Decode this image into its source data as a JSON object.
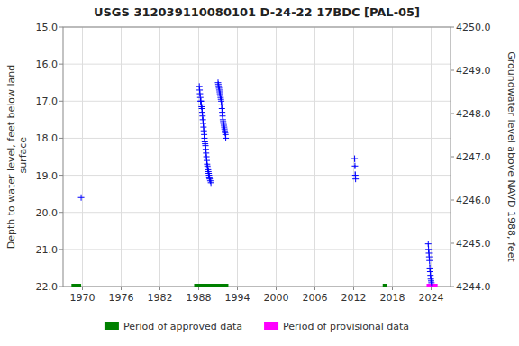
{
  "chart_data": {
    "type": "line",
    "title": "USGS 312039110080101 D-24-22 17BDC [PAL-05]",
    "y_label": "Depth to water level, feet below land\n surface",
    "y2_label": "Groundwater level above NAVD 1988, feet",
    "xlim": [
      1967,
      2027
    ],
    "xticks": [
      1970,
      1976,
      1982,
      1988,
      1994,
      2000,
      2006,
      2012,
      2018,
      2024
    ],
    "ylim": [
      22.0,
      15.0
    ],
    "yticks": [
      {
        "value": 15.0,
        "label": "15.0"
      },
      {
        "value": 16.0,
        "label": "16.0"
      },
      {
        "value": 17.0,
        "label": "17.0"
      },
      {
        "value": 18.0,
        "label": "18.0"
      },
      {
        "value": 19.0,
        "label": "19.0"
      },
      {
        "value": 20.0,
        "label": "20.0"
      },
      {
        "value": 21.0,
        "label": "21.0"
      },
      {
        "value": 22.0,
        "label": "22.0"
      }
    ],
    "y2lim": [
      4244.0,
      4250.0
    ],
    "y2ticks": [
      {
        "value": 4244.0,
        "label": "4244.0"
      },
      {
        "value": 4245.0,
        "label": "4245.0"
      },
      {
        "value": 4246.0,
        "label": "4246.0"
      },
      {
        "value": 4247.0,
        "label": "4247.0"
      },
      {
        "value": 4248.0,
        "label": "4248.0"
      },
      {
        "value": 4249.0,
        "label": "4249.0"
      },
      {
        "value": 4250.0,
        "label": "4250.0"
      }
    ],
    "grid": true,
    "legend": "bottom",
    "series": [
      {
        "name": "Period of approved data",
        "type": "period",
        "color": "#008000",
        "x": [
          [
            1968.3,
            1969.8
          ],
          [
            1987.3,
            1992.6
          ],
          [
            2016.5,
            2017.2
          ]
        ],
        "values": [
          22.0,
          22.0,
          22.0
        ]
      },
      {
        "name": "Period of provisional data",
        "type": "period",
        "color": "#ff00ff",
        "x": [
          [
            2023.3,
            2025.0
          ]
        ],
        "values": [
          22.0
        ]
      },
      {
        "type": "line",
        "color": "#0000ff",
        "marker": "plus",
        "line_style": "none",
        "x": [
          1969.8
        ],
        "values": [
          19.6
        ]
      },
      {
        "type": "line",
        "color": "#0000ff",
        "marker": "plus",
        "line_style": "dashed",
        "x": [
          1988.1,
          1988.15,
          1988.2,
          1988.25,
          1988.3,
          1988.35,
          1988.4,
          1988.45,
          1988.5,
          1988.55,
          1988.6,
          1988.65,
          1988.7,
          1988.75,
          1988.8,
          1988.85,
          1988.9,
          1988.95,
          1989.0,
          1989.05,
          1989.1,
          1989.15,
          1989.2,
          1989.25,
          1989.3,
          1989.35,
          1989.4,
          1989.45,
          1989.5,
          1989.55,
          1989.6,
          1989.65,
          1989.7,
          1989.8,
          1989.9
        ],
        "values": [
          16.6,
          16.7,
          16.8,
          16.9,
          17.0,
          17.0,
          17.1,
          17.15,
          17.2,
          17.3,
          17.4,
          17.5,
          17.6,
          17.7,
          17.8,
          17.9,
          18.0,
          18.1,
          18.15,
          18.2,
          18.3,
          18.4,
          18.5,
          18.6,
          18.7,
          18.75,
          18.8,
          18.85,
          18.9,
          18.95,
          19.0,
          19.05,
          19.1,
          19.15,
          19.2
        ]
      },
      {
        "type": "line",
        "color": "#0000ff",
        "marker": "plus",
        "line_style": "dashed",
        "x": [
          1991.0,
          1991.05,
          1991.1,
          1991.15,
          1991.2,
          1991.25,
          1991.3,
          1991.35,
          1991.4,
          1991.45,
          1991.5,
          1991.55,
          1991.6,
          1991.65,
          1991.7,
          1991.75,
          1991.8,
          1991.85,
          1991.9,
          1991.95,
          1992.0,
          1992.05,
          1992.1,
          1992.15,
          1992.2
        ],
        "values": [
          16.5,
          16.55,
          16.6,
          16.65,
          16.7,
          16.75,
          16.8,
          16.85,
          16.9,
          16.95,
          17.0,
          17.1,
          17.2,
          17.3,
          17.4,
          17.5,
          17.55,
          17.6,
          17.65,
          17.7,
          17.75,
          17.8,
          17.85,
          17.9,
          18.0
        ]
      },
      {
        "type": "line",
        "color": "#0000ff",
        "marker": "plus",
        "line_style": "dashed",
        "x": [
          2012.15,
          2012.2,
          2012.25,
          2012.3
        ],
        "values": [
          18.55,
          18.75,
          19.0,
          19.1
        ]
      },
      {
        "type": "line",
        "color": "#0000ff",
        "marker": "plus",
        "line_style": "dashed",
        "x": [
          2023.55,
          2023.6,
          2023.65,
          2023.7,
          2023.75,
          2023.8,
          2023.85,
          2023.9,
          2023.95,
          2024.0,
          2024.05
        ],
        "values": [
          20.85,
          21.0,
          21.1,
          21.2,
          21.3,
          21.5,
          21.6,
          21.7,
          21.8,
          21.85,
          21.9
        ]
      }
    ]
  }
}
